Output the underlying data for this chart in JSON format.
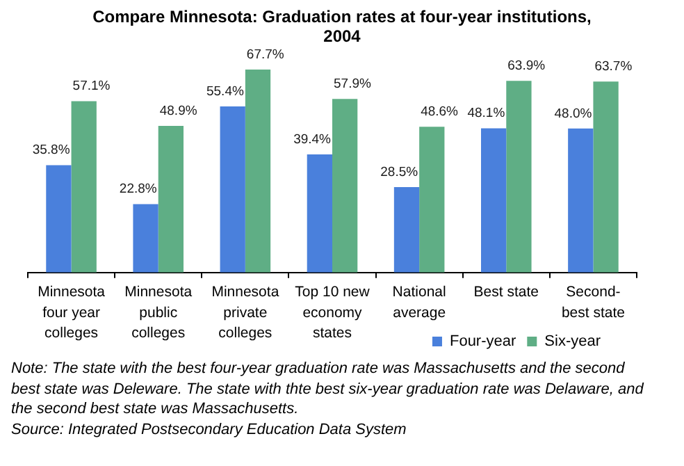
{
  "chart_data": {
    "type": "bar",
    "title": "Compare Minnesota: Graduation rates at four-year institutions, 2004",
    "categories": [
      "Minnesota four year colleges",
      "Minnesota public colleges",
      "Minnesota private colleges",
      "Top 10 new economy states",
      "National average",
      "Best state",
      "Second-best state"
    ],
    "series": [
      {
        "name": "Four-year",
        "color": "#4a80dc",
        "values": [
          35.8,
          22.8,
          55.4,
          39.4,
          28.5,
          48.1,
          48.0
        ],
        "value_labels": [
          "35.8%",
          "22.8%",
          "55.4%",
          "39.4%",
          "28.5%",
          "48.1%",
          "48.0%"
        ]
      },
      {
        "name": "Six-year",
        "color": "#5fae85",
        "values": [
          57.1,
          48.9,
          67.7,
          57.9,
          48.6,
          63.9,
          63.7
        ],
        "value_labels": [
          "57.1%",
          "48.9%",
          "67.7%",
          "57.9%",
          "48.6%",
          "63.9%",
          "63.7%"
        ]
      }
    ],
    "legend": "bottom right",
    "tick_labels": "x",
    "annotations": [
      "Note: The state with the best four-year graduation rate was Massachusetts and the second best state was Deleware. The state with thte best six-year graduation rate was Delaware, and the second best state was Massachusetts.",
      "Source: Integrated Postsecondary Education Data System"
    ]
  }
}
